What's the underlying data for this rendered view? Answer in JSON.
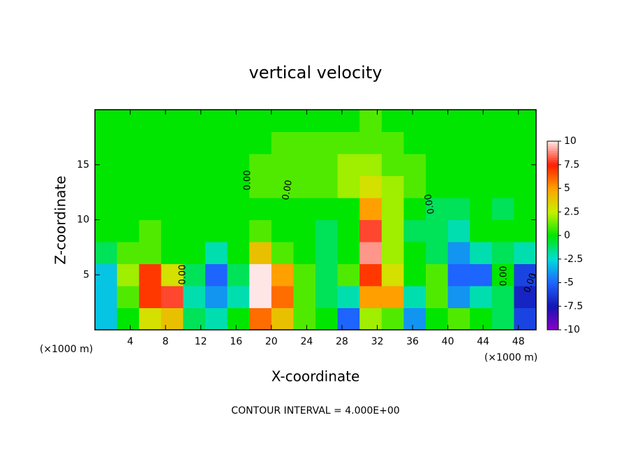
{
  "chart_data": {
    "type": "heatmap",
    "title": "vertical velocity",
    "x_label": "X-coordinate",
    "y_label": "Z-coordinate",
    "x_unit_label": "(×1000 m)",
    "y_unit_label": "(×1000 m)",
    "footer": "CONTOUR INTERVAL = 4.000E+00",
    "contour_labels": [
      "0.00",
      "0.00",
      "0.00",
      "0.00",
      "0.00",
      "0.00"
    ],
    "xlim": [
      0,
      50
    ],
    "ylim": [
      0,
      20
    ],
    "xticks": [
      4,
      8,
      12,
      16,
      20,
      24,
      28,
      32,
      36,
      40,
      44,
      48
    ],
    "yticks": [
      5,
      10,
      15
    ],
    "zlim": [
      -10,
      10
    ],
    "zticks": [
      10,
      7.5,
      5,
      2.5,
      0,
      -2.5,
      -5,
      -7.5,
      -10
    ],
    "colormap": [
      "#8a00c8",
      "#1414b4",
      "#1e64ff",
      "#00dcdc",
      "#00e600",
      "#c8f000",
      "#ffa000",
      "#ff1e00",
      "#ffe6e6"
    ],
    "x": [
      1.25,
      3.75,
      6.25,
      8.75,
      11.25,
      13.75,
      16.25,
      18.75,
      21.25,
      23.75,
      26.25,
      28.75,
      31.25,
      33.75,
      36.25,
      38.75,
      41.25,
      43.75,
      46.25,
      48.75
    ],
    "y": [
      1,
      3,
      5,
      7,
      9,
      11,
      13,
      15,
      17,
      19
    ],
    "z": [
      [
        -3,
        0,
        3,
        4,
        -1,
        -2,
        0,
        6,
        4,
        1,
        0,
        -5,
        2,
        1,
        -4,
        0,
        1,
        0,
        -1,
        -6
      ],
      [
        -3,
        1,
        7,
        8,
        -2,
        -4,
        -2,
        10,
        6,
        1,
        -1,
        -2,
        5,
        5,
        -2,
        1,
        -4,
        -2,
        -1,
        -7
      ],
      [
        -3,
        2,
        7,
        3,
        -1,
        -5,
        -1,
        10,
        5,
        1,
        -1,
        1,
        7,
        3,
        0,
        1,
        -5,
        -5,
        0,
        -6
      ],
      [
        -1,
        1,
        1,
        0,
        0,
        -2,
        0,
        4,
        1,
        0,
        -1,
        0,
        9,
        2,
        0,
        -1,
        -4,
        -2,
        -1,
        -2
      ],
      [
        0,
        0,
        1,
        0,
        0,
        0,
        0,
        1,
        0,
        0,
        -1,
        0,
        8,
        2,
        -1,
        -1,
        -2,
        0,
        0,
        0
      ],
      [
        0,
        0,
        0,
        0,
        0,
        0,
        0,
        0,
        0,
        0,
        0,
        0,
        5,
        2,
        0,
        -1,
        -1,
        0,
        -1,
        0
      ],
      [
        0,
        0,
        0,
        0,
        0,
        0,
        0,
        1,
        1,
        1,
        1,
        2,
        3,
        2,
        1,
        0,
        0,
        0,
        0,
        0
      ],
      [
        0,
        0,
        0,
        0,
        0,
        0,
        0,
        1,
        1,
        1,
        1,
        2,
        2,
        1,
        1,
        0,
        0,
        0,
        0,
        0
      ],
      [
        0,
        0,
        0,
        0,
        0,
        0,
        0,
        0,
        1,
        1,
        1,
        1,
        1,
        1,
        0,
        0,
        0,
        0,
        0,
        0
      ],
      [
        0,
        0,
        0,
        0,
        0,
        0,
        0,
        0,
        0,
        0,
        0,
        0,
        1,
        0,
        0,
        0,
        0,
        0,
        0,
        0
      ]
    ]
  }
}
